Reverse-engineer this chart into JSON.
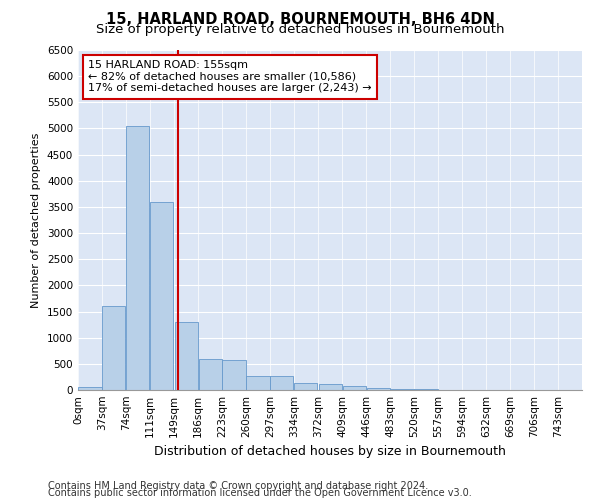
{
  "title": "15, HARLAND ROAD, BOURNEMOUTH, BH6 4DN",
  "subtitle": "Size of property relative to detached houses in Bournemouth",
  "xlabel": "Distribution of detached houses by size in Bournemouth",
  "ylabel": "Number of detached properties",
  "bar_color": "#b8d0e8",
  "bar_edge_color": "#6699cc",
  "background_color": "#dce6f5",
  "vline_color": "#cc0000",
  "vline_value": 155,
  "annotation_text": "15 HARLAND ROAD: 155sqm\n← 82% of detached houses are smaller (10,586)\n17% of semi-detached houses are larger (2,243) →",
  "categories": [
    "0sqm",
    "37sqm",
    "74sqm",
    "111sqm",
    "149sqm",
    "186sqm",
    "223sqm",
    "260sqm",
    "297sqm",
    "334sqm",
    "372sqm",
    "409sqm",
    "446sqm",
    "483sqm",
    "520sqm",
    "557sqm",
    "594sqm",
    "632sqm",
    "669sqm",
    "706sqm",
    "743sqm"
  ],
  "bin_edges": [
    0,
    37,
    74,
    111,
    149,
    186,
    223,
    260,
    297,
    334,
    372,
    409,
    446,
    483,
    520,
    557,
    594,
    632,
    669,
    706,
    743,
    780
  ],
  "values": [
    50,
    1600,
    5050,
    3600,
    1300,
    600,
    580,
    270,
    260,
    130,
    110,
    75,
    45,
    25,
    12,
    6,
    3,
    2,
    1,
    1,
    0
  ],
  "ylim": [
    0,
    6500
  ],
  "yticks": [
    0,
    500,
    1000,
    1500,
    2000,
    2500,
    3000,
    3500,
    4000,
    4500,
    5000,
    5500,
    6000,
    6500
  ],
  "footer1": "Contains HM Land Registry data © Crown copyright and database right 2024.",
  "footer2": "Contains public sector information licensed under the Open Government Licence v3.0.",
  "title_fontsize": 10.5,
  "subtitle_fontsize": 9.5,
  "xlabel_fontsize": 9,
  "ylabel_fontsize": 8,
  "tick_fontsize": 7.5,
  "footer_fontsize": 7,
  "ann_fontsize": 8
}
